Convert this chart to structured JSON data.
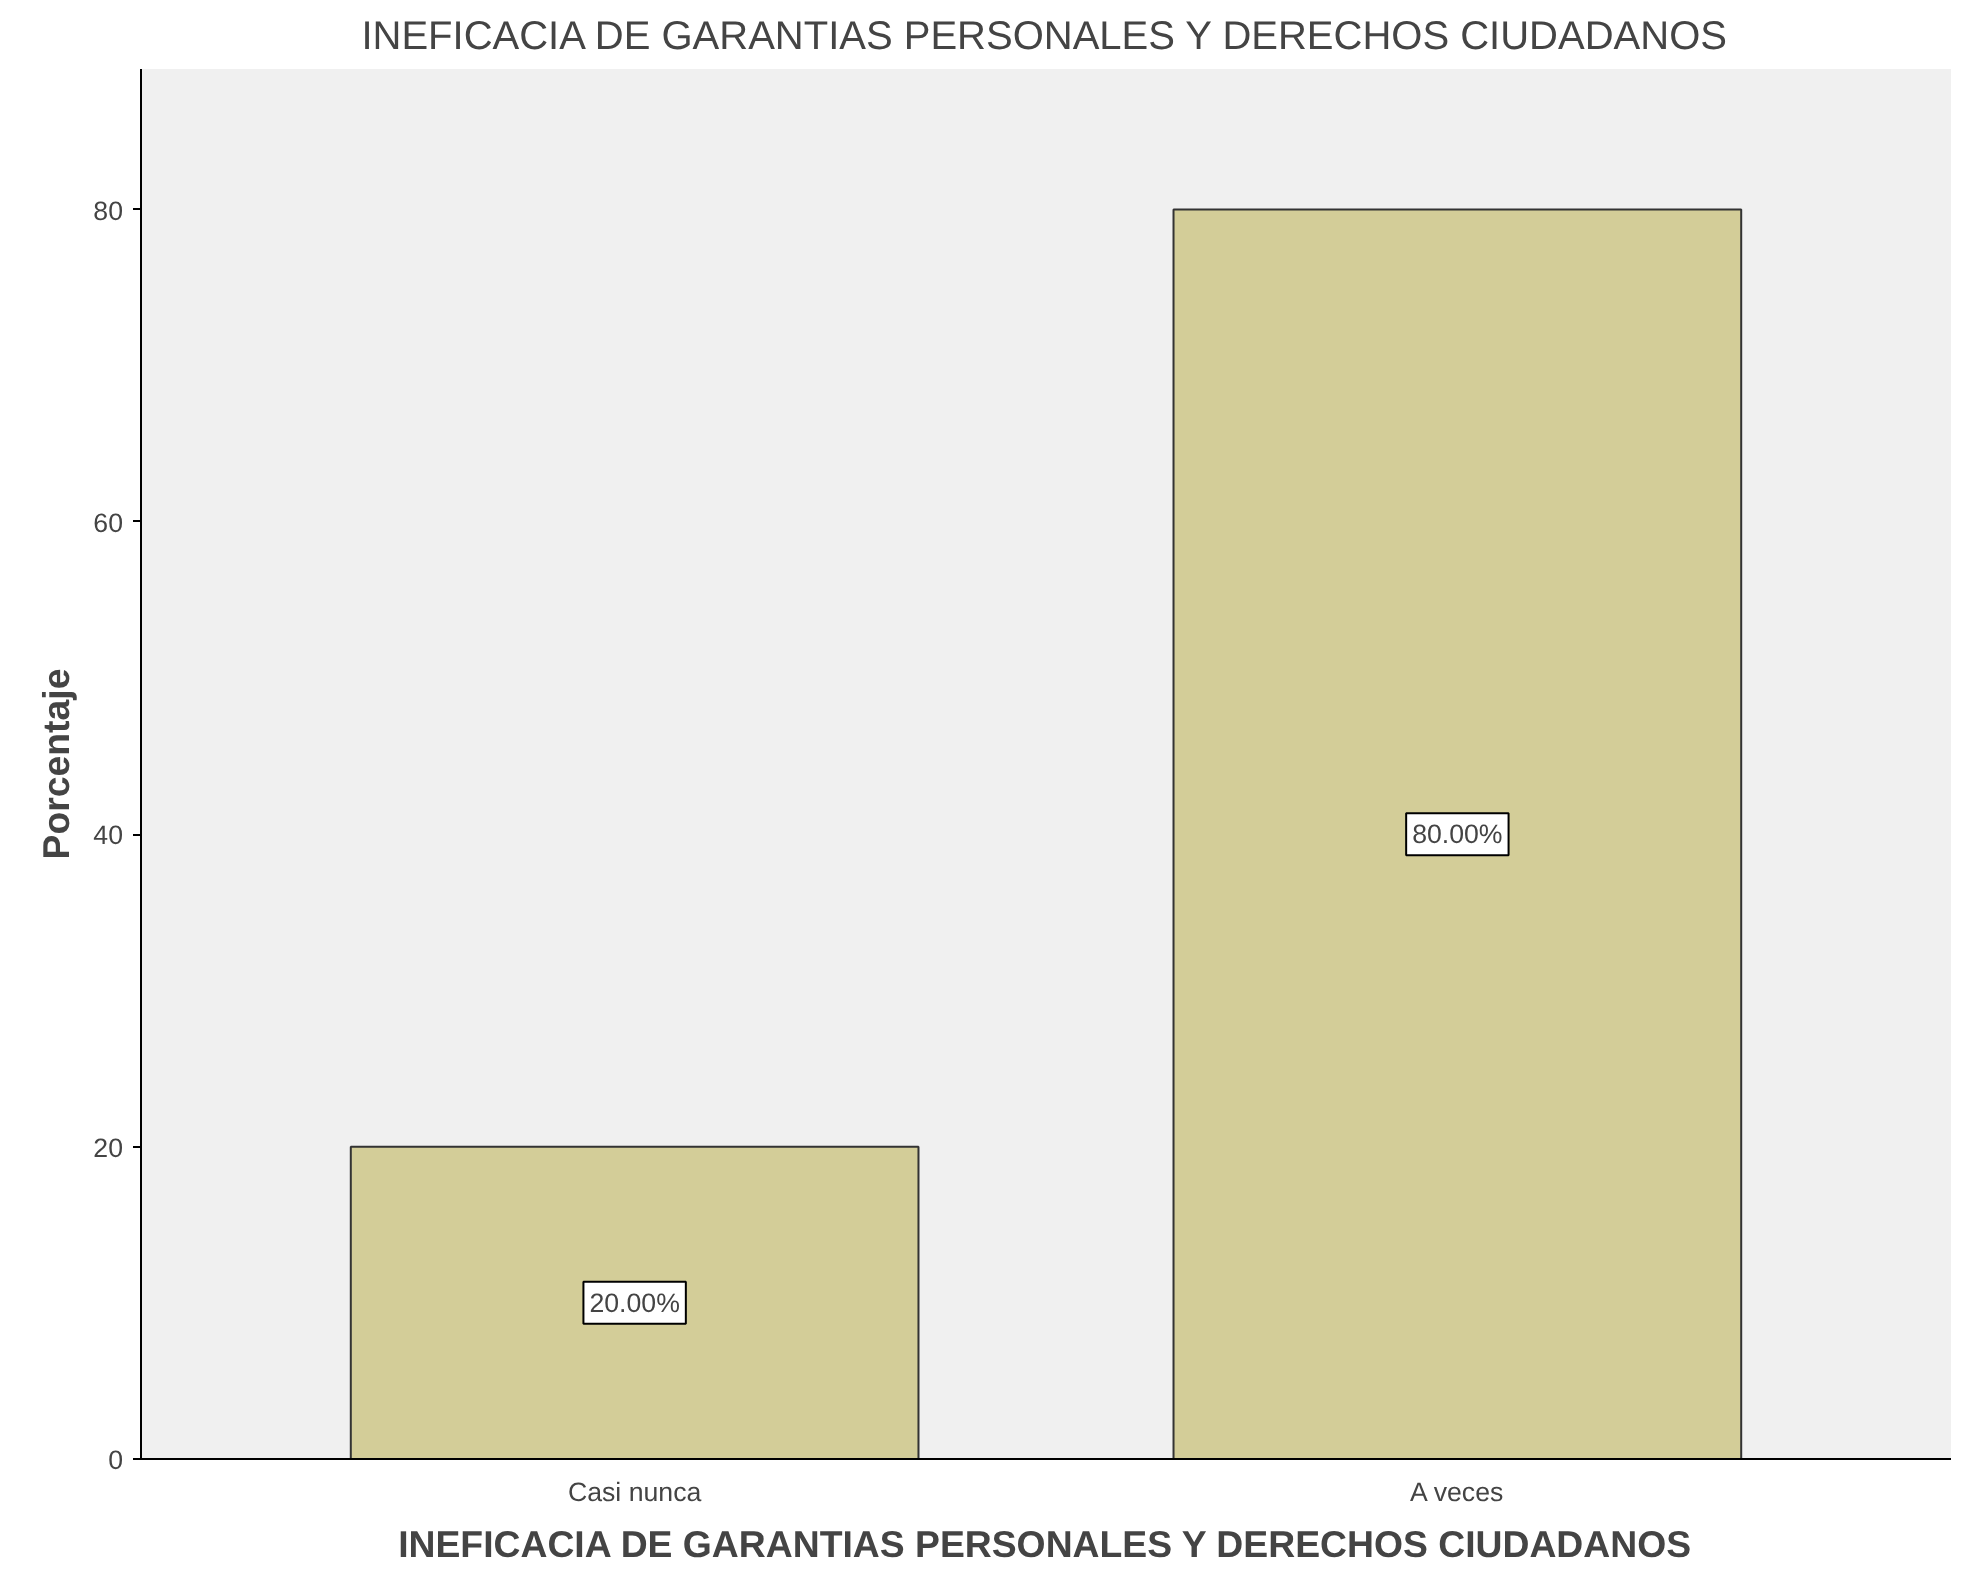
{
  "chart_data": {
    "type": "bar",
    "title": "INEFICACIA DE GARANTIAS PERSONALES Y DERECHOS CIUDADANOS",
    "xlabel": "INEFICACIA DE GARANTIAS PERSONALES Y DERECHOS CIUDADANOS",
    "ylabel": "Porcentaje",
    "categories": [
      "Casi nunca",
      "A veces"
    ],
    "values": [
      20,
      80
    ],
    "value_labels": [
      "20.00%",
      "80.00%"
    ],
    "color": "#d3cd98",
    "ylim": [
      0,
      89
    ],
    "yticks": [
      0,
      20,
      40,
      60,
      80
    ],
    "grid": false
  }
}
